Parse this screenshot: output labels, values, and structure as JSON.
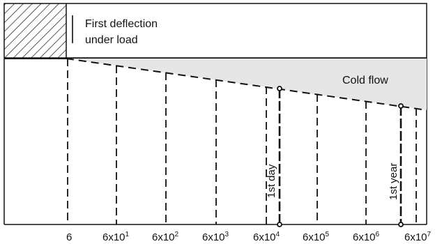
{
  "labels": {
    "first_deflection_line1": "First deflection",
    "first_deflection_line2": "under load",
    "cold_flow": "Cold flow",
    "first_day": "1st day",
    "first_year": "1st year"
  },
  "x_axis": {
    "ticks": [
      {
        "base": "6",
        "exp": ""
      },
      {
        "base": "6x10",
        "exp": "1"
      },
      {
        "base": "6x10",
        "exp": "2"
      },
      {
        "base": "6x10",
        "exp": "3"
      },
      {
        "base": "6x10",
        "exp": "4"
      },
      {
        "base": "6x10",
        "exp": "5"
      },
      {
        "base": "6x10",
        "exp": "6"
      },
      {
        "base": "6x10",
        "exp": "7"
      }
    ]
  },
  "colors": {
    "cold_flow_fill": "#e6e6e6",
    "lines": "#111111"
  }
}
